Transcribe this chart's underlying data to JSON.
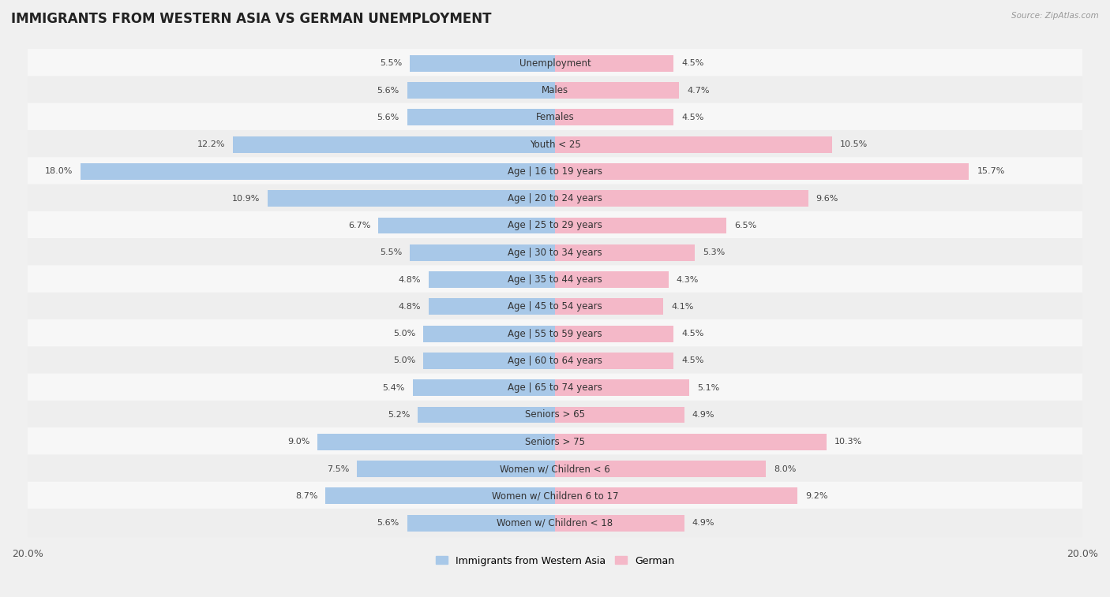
{
  "title": "IMMIGRANTS FROM WESTERN ASIA VS GERMAN UNEMPLOYMENT",
  "source": "Source: ZipAtlas.com",
  "categories": [
    "Unemployment",
    "Males",
    "Females",
    "Youth < 25",
    "Age | 16 to 19 years",
    "Age | 20 to 24 years",
    "Age | 25 to 29 years",
    "Age | 30 to 34 years",
    "Age | 35 to 44 years",
    "Age | 45 to 54 years",
    "Age | 55 to 59 years",
    "Age | 60 to 64 years",
    "Age | 65 to 74 years",
    "Seniors > 65",
    "Seniors > 75",
    "Women w/ Children < 6",
    "Women w/ Children 6 to 17",
    "Women w/ Children < 18"
  ],
  "left_values": [
    5.5,
    5.6,
    5.6,
    12.2,
    18.0,
    10.9,
    6.7,
    5.5,
    4.8,
    4.8,
    5.0,
    5.0,
    5.4,
    5.2,
    9.0,
    7.5,
    8.7,
    5.6
  ],
  "right_values": [
    4.5,
    4.7,
    4.5,
    10.5,
    15.7,
    9.6,
    6.5,
    5.3,
    4.3,
    4.1,
    4.5,
    4.5,
    5.1,
    4.9,
    10.3,
    8.0,
    9.2,
    4.9
  ],
  "left_color": "#a8c8e8",
  "right_color": "#f4b8c8",
  "left_label": "Immigrants from Western Asia",
  "right_label": "German",
  "axis_max": 20.0,
  "row_bg_color_odd": "#f5f5f5",
  "row_bg_color_even": "#e8e8e8",
  "background_color": "#f0f0f0",
  "title_fontsize": 12,
  "label_fontsize": 8.5,
  "value_fontsize": 8.0
}
